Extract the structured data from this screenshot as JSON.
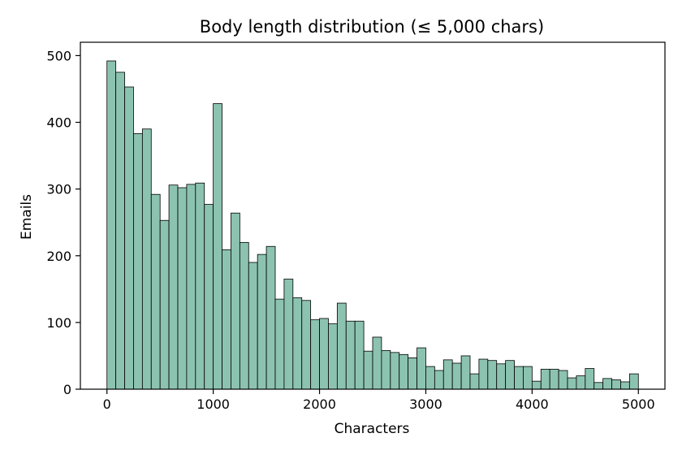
{
  "chart_data": {
    "type": "bar",
    "title": "Body length distribution (≤ 5,000 chars)",
    "xlabel": "Characters",
    "ylabel": "Emails",
    "xlim": [
      -250,
      5250
    ],
    "ylim": [
      0,
      520
    ],
    "bin_width": 83.33,
    "x_ticks": [
      0,
      1000,
      2000,
      3000,
      4000,
      5000
    ],
    "x_tick_labels": [
      "0",
      "1000",
      "2000",
      "3000",
      "4000",
      "5000"
    ],
    "y_ticks": [
      0,
      100,
      200,
      300,
      400,
      500
    ],
    "y_tick_labels": [
      "0",
      "100",
      "200",
      "300",
      "400",
      "500"
    ],
    "grid": false,
    "bar_color": "#8cc3b0",
    "edge_color": "#000000",
    "bins": [
      0,
      83.33,
      166.67,
      250,
      333.33,
      416.67,
      500,
      583.33,
      666.67,
      750,
      833.33,
      916.67,
      1000,
      1083.33,
      1166.67,
      1250,
      1333.33,
      1416.67,
      1500,
      1583.33,
      1666.67,
      1750,
      1833.33,
      1916.67,
      2000,
      2083.33,
      2166.67,
      2250,
      2333.33,
      2416.67,
      2500,
      2583.33,
      2666.67,
      2750,
      2833.33,
      2916.67,
      3000,
      3083.33,
      3166.67,
      3250,
      3333.33,
      3416.67,
      3500,
      3583.33,
      3666.67,
      3750,
      3833.33,
      3916.67,
      4000,
      4083.33,
      4166.67,
      4250,
      4333.33,
      4416.67,
      4500,
      4583.33,
      4666.67,
      4750,
      4833.33,
      4916.67
    ],
    "values": [
      492,
      475,
      453,
      383,
      390,
      292,
      253,
      306,
      302,
      307,
      309,
      277,
      428,
      209,
      264,
      220,
      190,
      202,
      214,
      135,
      165,
      137,
      133,
      104,
      106,
      98,
      129,
      102,
      102,
      57,
      78,
      58,
      55,
      52,
      47,
      62,
      34,
      28,
      44,
      39,
      50,
      23,
      45,
      43,
      38,
      43,
      34,
      34,
      12,
      30,
      30,
      28,
      17,
      20,
      31,
      10,
      16,
      14,
      11,
      23
    ]
  }
}
